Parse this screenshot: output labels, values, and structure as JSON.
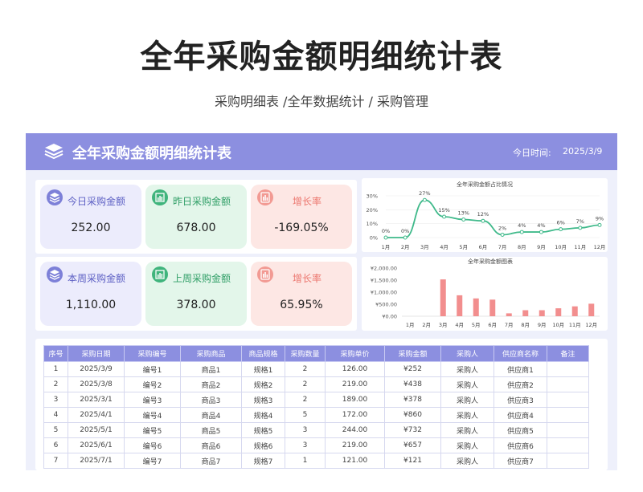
{
  "page": {
    "main_title": "全年采购金额明细统计表",
    "subtitle": "采购明细表 /全年数据统计 / 采购管理"
  },
  "header": {
    "title": "全年采购金额明细统计表",
    "date_label": "今日时间:",
    "date_value": "2025/3/9"
  },
  "cards": [
    {
      "label": "今日采购金额",
      "value": "252.00",
      "icon": "stack-icon",
      "color": "#7d80d8"
    },
    {
      "label": "昨日采购金额",
      "value": "678.00",
      "icon": "bar-chart-icon",
      "color": "#3fb47c"
    },
    {
      "label": "增长率",
      "value": "-169.05%",
      "icon": "trend-icon",
      "color": "#f29a93"
    },
    {
      "label": "本周采购金额",
      "value": "1,110.00",
      "icon": "stack-icon",
      "color": "#7d80d8"
    },
    {
      "label": "上周采购金额",
      "value": "378.00",
      "icon": "bar-chart-icon",
      "color": "#3fb47c"
    },
    {
      "label": "增长率",
      "value": "65.95%",
      "icon": "trend-icon",
      "color": "#f29a93"
    }
  ],
  "chart_data": [
    {
      "type": "line",
      "title": "全年采购金额占比情况",
      "categories": [
        "1月",
        "2月",
        "3月",
        "4月",
        "5月",
        "6月",
        "7月",
        "8月",
        "9月",
        "10月",
        "11月",
        "12月"
      ],
      "values": [
        0,
        0,
        27,
        15,
        13,
        12,
        2,
        4,
        4,
        6,
        7,
        9
      ],
      "data_labels": [
        "0%",
        "0%",
        "27%",
        "15%",
        "13%",
        "12%",
        "2%",
        "4%",
        "4%",
        "6%",
        "7%",
        "9%"
      ],
      "y_ticks": [
        "0%",
        "10%",
        "20%",
        "30%"
      ],
      "ylim": [
        0,
        30
      ],
      "color": "#3fb98a"
    },
    {
      "type": "bar",
      "title": "全年采购金额图表",
      "categories": [
        "1月",
        "2月",
        "3月",
        "4月",
        "5月",
        "6月",
        "7月",
        "8月",
        "9月",
        "10月",
        "11月",
        "12月"
      ],
      "values": [
        0,
        0,
        1530,
        870,
        740,
        690,
        120,
        250,
        250,
        330,
        410,
        520
      ],
      "y_ticks": [
        "¥0.00",
        "¥500.00",
        "¥1,000.00",
        "¥1,500.00",
        "¥2,000.00"
      ],
      "ylim": [
        0,
        2000
      ],
      "color": "#f28e8e"
    }
  ],
  "table": {
    "columns": [
      "序号",
      "采购日期",
      "采购编号",
      "采购商品",
      "商品规格",
      "采购数量",
      "采购单价",
      "采购金额",
      "采购人",
      "供应商名称",
      "备注"
    ],
    "rows": [
      [
        "1",
        "2025/3/9",
        "编号1",
        "商品1",
        "规格1",
        "2",
        "126.00",
        "¥252",
        "采购人",
        "供应商1",
        ""
      ],
      [
        "2",
        "2025/3/8",
        "编号2",
        "商品2",
        "规格2",
        "2",
        "219.00",
        "¥438",
        "采购人",
        "供应商2",
        ""
      ],
      [
        "3",
        "2025/3/1",
        "编号3",
        "商品3",
        "规格3",
        "2",
        "189.00",
        "¥378",
        "采购人",
        "供应商3",
        ""
      ],
      [
        "4",
        "2025/4/1",
        "编号4",
        "商品4",
        "规格4",
        "5",
        "172.00",
        "¥860",
        "采购人",
        "供应商4",
        ""
      ],
      [
        "5",
        "2025/5/1",
        "编号5",
        "商品5",
        "规格5",
        "3",
        "244.00",
        "¥732",
        "采购人",
        "供应商5",
        ""
      ],
      [
        "6",
        "2025/6/1",
        "编号6",
        "商品6",
        "规格6",
        "3",
        "219.00",
        "¥657",
        "采购人",
        "供应商6",
        ""
      ],
      [
        "7",
        "2025/7/1",
        "编号7",
        "商品7",
        "规格7",
        "1",
        "121.00",
        "¥121",
        "采购人",
        "供应商7",
        ""
      ]
    ]
  }
}
